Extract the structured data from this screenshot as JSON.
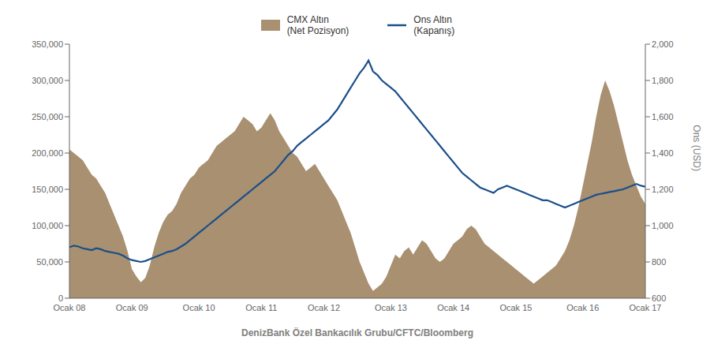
{
  "chart_data": {
    "type": "line",
    "xlabel": "DenizBank Özel Bankacılık Grubu/CFTC/Bloomberg",
    "y2label": "Ons (USD)",
    "categories": [
      "Ocak 08",
      null,
      null,
      null,
      null,
      null,
      null,
      null,
      null,
      null,
      null,
      null,
      null,
      null,
      "Ocak 09",
      null,
      null,
      null,
      null,
      null,
      null,
      null,
      null,
      null,
      null,
      null,
      null,
      null,
      null,
      "Ocak 10",
      null,
      null,
      null,
      null,
      null,
      null,
      null,
      null,
      null,
      null,
      null,
      null,
      null,
      "Ocak 11",
      null,
      null,
      null,
      null,
      null,
      null,
      null,
      null,
      null,
      null,
      null,
      null,
      null,
      "Ocak 12",
      null,
      null,
      null,
      null,
      null,
      null,
      null,
      null,
      null,
      null,
      null,
      null,
      null,
      null,
      "Ocak 13",
      null,
      null,
      null,
      null,
      null,
      null,
      null,
      null,
      null,
      null,
      null,
      null,
      null,
      "Ocak 14",
      null,
      null,
      null,
      null,
      null,
      null,
      null,
      null,
      null,
      null,
      null,
      null,
      null,
      "Ocak 15",
      null,
      null,
      null,
      null,
      null,
      null,
      null,
      null,
      null,
      null,
      null,
      null,
      null,
      null,
      "Ocak 16",
      null,
      null,
      null,
      null,
      null,
      null,
      null,
      null,
      null,
      null,
      null,
      null,
      null,
      "Ocak 17"
    ],
    "series": [
      {
        "name": "CMX Altın\n(Net Pozisyon)",
        "color": "#a89070",
        "type": "area",
        "values": [
          205000,
          200000,
          195000,
          190000,
          180000,
          170000,
          165000,
          155000,
          145000,
          130000,
          115000,
          100000,
          85000,
          65000,
          40000,
          30000,
          22000,
          28000,
          45000,
          70000,
          90000,
          105000,
          115000,
          120000,
          130000,
          145000,
          155000,
          165000,
          170000,
          180000,
          185000,
          190000,
          200000,
          210000,
          215000,
          220000,
          225000,
          230000,
          240000,
          250000,
          245000,
          240000,
          230000,
          235000,
          245000,
          255000,
          245000,
          230000,
          220000,
          210000,
          200000,
          195000,
          185000,
          175000,
          180000,
          185000,
          175000,
          165000,
          155000,
          145000,
          135000,
          120000,
          105000,
          90000,
          70000,
          50000,
          35000,
          20000,
          10000,
          15000,
          20000,
          30000,
          45000,
          60000,
          55000,
          65000,
          70000,
          60000,
          70000,
          80000,
          75000,
          65000,
          55000,
          50000,
          55000,
          65000,
          75000,
          80000,
          85000,
          95000,
          100000,
          95000,
          85000,
          75000,
          70000,
          65000,
          60000,
          55000,
          50000,
          45000,
          40000,
          35000,
          30000,
          25000,
          20000,
          25000,
          30000,
          35000,
          40000,
          45000,
          55000,
          65000,
          80000,
          100000,
          125000,
          155000,
          185000,
          215000,
          250000,
          280000,
          300000,
          285000,
          265000,
          240000,
          215000,
          190000,
          170000,
          155000,
          140000,
          130000
        ]
      },
      {
        "name": "Ons Altın\n(Kapanış)",
        "color": "#1a4f8a",
        "type": "line",
        "axis": "y2",
        "values": [
          880,
          890,
          885,
          875,
          870,
          865,
          875,
          870,
          860,
          855,
          850,
          845,
          835,
          820,
          810,
          805,
          800,
          805,
          815,
          825,
          835,
          845,
          855,
          860,
          870,
          885,
          900,
          920,
          940,
          960,
          980,
          1000,
          1020,
          1040,
          1060,
          1080,
          1100,
          1120,
          1140,
          1160,
          1180,
          1200,
          1220,
          1240,
          1260,
          1280,
          1300,
          1330,
          1360,
          1390,
          1410,
          1440,
          1460,
          1480,
          1500,
          1520,
          1540,
          1560,
          1580,
          1610,
          1640,
          1680,
          1720,
          1760,
          1800,
          1840,
          1870,
          1910,
          1850,
          1830,
          1800,
          1780,
          1760,
          1740,
          1710,
          1680,
          1650,
          1620,
          1590,
          1560,
          1530,
          1500,
          1470,
          1440,
          1410,
          1380,
          1350,
          1320,
          1290,
          1270,
          1250,
          1230,
          1210,
          1200,
          1190,
          1180,
          1200,
          1210,
          1220,
          1210,
          1200,
          1190,
          1180,
          1170,
          1160,
          1150,
          1140,
          1140,
          1130,
          1120,
          1110,
          1100,
          1110,
          1120,
          1130,
          1140,
          1150,
          1160,
          1170,
          1175,
          1180,
          1185,
          1190,
          1195,
          1200,
          1210,
          1220,
          1230,
          1220,
          1215
        ]
      }
    ],
    "ylim": [
      0,
      350000
    ],
    "yticks": [
      0,
      {
        "value": 50000,
        "label": "50,000"
      },
      {
        "value": 100000,
        "label": "100,000"
      },
      {
        "value": 150000,
        "label": "150,000"
      },
      {
        "value": 200000,
        "label": "200,000"
      },
      {
        "value": 250000,
        "label": "250,000"
      },
      {
        "value": 300000,
        "label": "300,000"
      },
      {
        "value": 350000,
        "label": "350,000"
      }
    ],
    "y2lim": [
      600,
      2000
    ],
    "y2ticks": [
      600,
      800,
      {
        "value": 1000,
        "label": "1,000"
      },
      {
        "value": 1200,
        "label": "1,200"
      },
      {
        "value": 1400,
        "label": "1,400"
      },
      {
        "value": 1600,
        "label": "1,600"
      },
      {
        "value": 1800,
        "label": "1,800"
      },
      {
        "value": 2000,
        "label": "2,000"
      }
    ],
    "grid": false,
    "legend": "top"
  }
}
